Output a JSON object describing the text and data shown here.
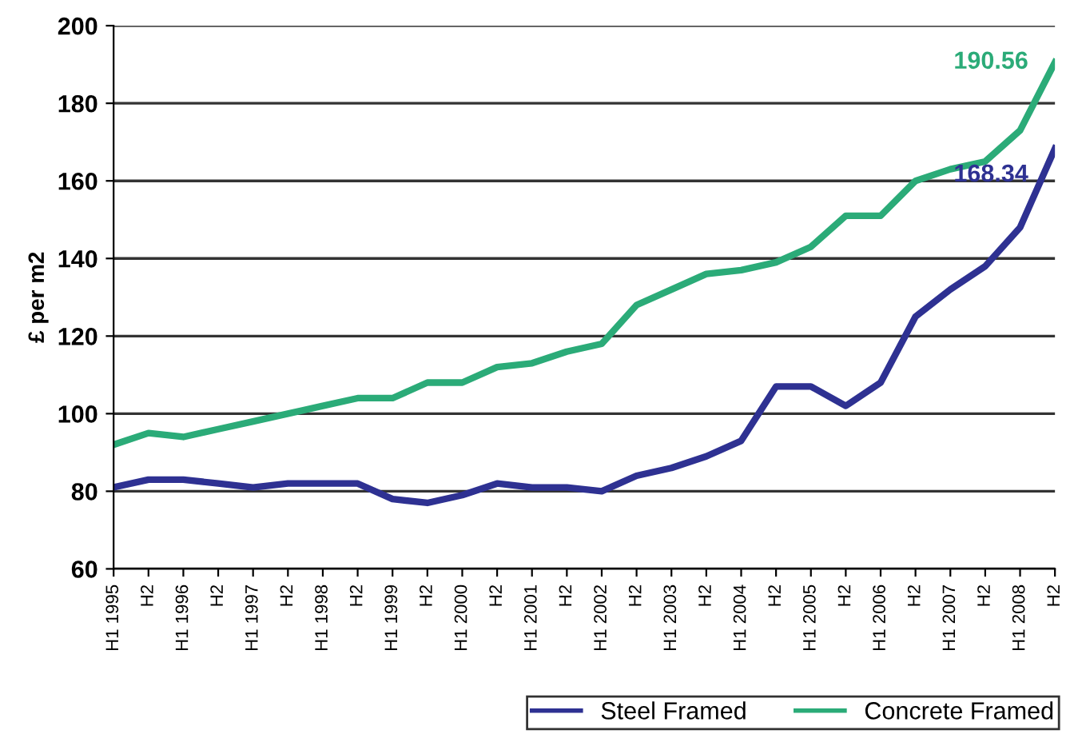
{
  "chart_data": {
    "type": "line",
    "ylabel": "£ per m2",
    "categories": [
      "H1 1995",
      "H2",
      "H1 1996",
      "H2",
      "H1 1997",
      "H2",
      "H1 1998",
      "H2",
      "H1 1999",
      "H2",
      "H1 2000",
      "H2",
      "H1 2001",
      "H2",
      "H1 2002",
      "H2",
      "H1 2003",
      "H2",
      "H1 2004",
      "H2",
      "H1 2005",
      "H2",
      "H1 2006",
      "H2",
      "H1 2007",
      "H2",
      "H1 2008",
      "H2"
    ],
    "series": [
      {
        "name": "Steel Framed",
        "color": "#2e3192",
        "values": [
          81,
          83,
          83,
          82,
          81,
          82,
          82,
          82,
          78,
          77,
          79,
          82,
          81,
          81,
          80,
          84,
          86,
          89,
          93,
          107,
          107,
          102,
          108,
          125,
          132,
          138,
          148,
          168.34
        ]
      },
      {
        "name": "Concrete Framed",
        "color": "#2bab78",
        "values": [
          92,
          95,
          94,
          96,
          98,
          100,
          102,
          104,
          104,
          108,
          108,
          112,
          113,
          116,
          118,
          128,
          132,
          136,
          137,
          139,
          143,
          151,
          151,
          160,
          163,
          165,
          173,
          190.56
        ]
      }
    ],
    "annotations": [
      "168.34",
      "190.56"
    ],
    "ylim": [
      60,
      200
    ],
    "yticks": [
      60,
      80,
      100,
      120,
      140,
      160,
      180,
      200
    ],
    "grid": "y",
    "legend": "bottom",
    "marker": "none",
    "line_style": "solid"
  }
}
